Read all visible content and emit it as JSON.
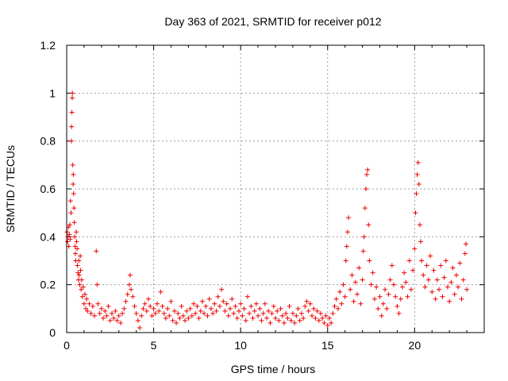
{
  "chart_data": {
    "type": "scatter",
    "title": "Day 363 of 2021, SRMTID for receiver p012",
    "xlabel": "GPS time / hours",
    "ylabel": "SRMTID / TECUs",
    "xlim": [
      0,
      24
    ],
    "ylim": [
      0,
      1.2
    ],
    "grid": true,
    "xticks": [
      0,
      5,
      10,
      15,
      20
    ],
    "xtick_labels": [
      "0",
      "5",
      "10",
      "15",
      "20"
    ],
    "yticks": [
      0,
      0.2,
      0.4,
      0.6,
      0.8,
      1,
      1.2
    ],
    "ytick_labels": [
      "0",
      "0.2",
      "0.4",
      "0.6",
      "0.8",
      "1",
      "1.2"
    ],
    "marker": "+",
    "color": "#ee0000",
    "series": [
      {
        "name": "SRMTID",
        "points": [
          [
            0.02,
            0.42
          ],
          [
            0.05,
            0.38
          ],
          [
            0.08,
            0.4
          ],
          [
            0.1,
            0.44
          ],
          [
            0.12,
            0.36
          ],
          [
            0.15,
            0.41
          ],
          [
            0.18,
            0.45
          ],
          [
            0.2,
            0.39
          ],
          [
            0.22,
            0.55
          ],
          [
            0.25,
            0.5
          ],
          [
            0.27,
            0.8
          ],
          [
            0.28,
            0.86
          ],
          [
            0.3,
            0.92
          ],
          [
            0.32,
            0.98
          ],
          [
            0.33,
            1.0
          ],
          [
            0.35,
            0.7
          ],
          [
            0.37,
            0.62
          ],
          [
            0.38,
            0.66
          ],
          [
            0.4,
            0.58
          ],
          [
            0.42,
            0.52
          ],
          [
            0.44,
            0.46
          ],
          [
            0.46,
            0.4
          ],
          [
            0.48,
            0.36
          ],
          [
            0.5,
            0.33
          ],
          [
            0.52,
            0.3
          ],
          [
            0.55,
            0.42
          ],
          [
            0.57,
            0.38
          ],
          [
            0.6,
            0.35
          ],
          [
            0.62,
            0.28
          ],
          [
            0.65,
            0.25
          ],
          [
            0.68,
            0.22
          ],
          [
            0.7,
            0.3
          ],
          [
            0.72,
            0.24
          ],
          [
            0.75,
            0.2
          ],
          [
            0.78,
            0.32
          ],
          [
            0.8,
            0.26
          ],
          [
            0.83,
            0.18
          ],
          [
            0.86,
            0.22
          ],
          [
            0.9,
            0.15
          ],
          [
            0.95,
            0.19
          ],
          [
            1.0,
            0.12
          ],
          [
            1.05,
            0.16
          ],
          [
            1.1,
            0.1
          ],
          [
            1.15,
            0.14
          ],
          [
            1.2,
            0.09
          ],
          [
            1.3,
            0.12
          ],
          [
            1.4,
            0.08
          ],
          [
            1.5,
            0.11
          ],
          [
            1.6,
            0.07
          ],
          [
            1.7,
            0.34
          ],
          [
            1.75,
            0.2
          ],
          [
            1.8,
            0.12
          ],
          [
            1.9,
            0.08
          ],
          [
            2.0,
            0.1
          ],
          [
            2.1,
            0.06
          ],
          [
            2.2,
            0.09
          ],
          [
            2.3,
            0.07
          ],
          [
            2.4,
            0.11
          ],
          [
            2.5,
            0.05
          ],
          [
            2.6,
            0.08
          ],
          [
            2.7,
            0.06
          ],
          [
            2.8,
            0.09
          ],
          [
            2.9,
            0.05
          ],
          [
            3.0,
            0.07
          ],
          [
            3.1,
            0.04
          ],
          [
            3.2,
            0.08
          ],
          [
            3.3,
            0.1
          ],
          [
            3.4,
            0.13
          ],
          [
            3.5,
            0.16
          ],
          [
            3.6,
            0.2
          ],
          [
            3.65,
            0.24
          ],
          [
            3.7,
            0.18
          ],
          [
            3.8,
            0.15
          ],
          [
            3.9,
            0.11
          ],
          [
            4.0,
            0.08
          ],
          [
            4.1,
            0.05
          ],
          [
            4.2,
            0.02
          ],
          [
            4.3,
            0.07
          ],
          [
            4.4,
            0.1
          ],
          [
            4.5,
            0.12
          ],
          [
            4.6,
            0.09
          ],
          [
            4.7,
            0.14
          ],
          [
            4.8,
            0.11
          ],
          [
            4.9,
            0.07
          ],
          [
            5.0,
            0.1
          ],
          [
            5.1,
            0.08
          ],
          [
            5.2,
            0.12
          ],
          [
            5.3,
            0.09
          ],
          [
            5.4,
            0.17
          ],
          [
            5.5,
            0.11
          ],
          [
            5.6,
            0.08
          ],
          [
            5.7,
            0.06
          ],
          [
            5.8,
            0.1
          ],
          [
            5.9,
            0.07
          ],
          [
            6.0,
            0.13
          ],
          [
            6.1,
            0.05
          ],
          [
            6.2,
            0.09
          ],
          [
            6.3,
            0.04
          ],
          [
            6.4,
            0.08
          ],
          [
            6.5,
            0.06
          ],
          [
            6.6,
            0.11
          ],
          [
            6.7,
            0.07
          ],
          [
            6.8,
            0.05
          ],
          [
            6.9,
            0.09
          ],
          [
            7.0,
            0.06
          ],
          [
            7.1,
            0.1
          ],
          [
            7.2,
            0.07
          ],
          [
            7.3,
            0.12
          ],
          [
            7.4,
            0.08
          ],
          [
            7.5,
            0.11
          ],
          [
            7.6,
            0.06
          ],
          [
            7.7,
            0.09
          ],
          [
            7.8,
            0.13
          ],
          [
            7.9,
            0.08
          ],
          [
            8.0,
            0.11
          ],
          [
            8.1,
            0.07
          ],
          [
            8.2,
            0.14
          ],
          [
            8.3,
            0.1
          ],
          [
            8.4,
            0.08
          ],
          [
            8.5,
            0.12
          ],
          [
            8.6,
            0.09
          ],
          [
            8.7,
            0.15
          ],
          [
            8.8,
            0.11
          ],
          [
            8.9,
            0.18
          ],
          [
            9.0,
            0.13
          ],
          [
            9.1,
            0.09
          ],
          [
            9.2,
            0.12
          ],
          [
            9.3,
            0.07
          ],
          [
            9.4,
            0.1
          ],
          [
            9.5,
            0.14
          ],
          [
            9.6,
            0.08
          ],
          [
            9.7,
            0.11
          ],
          [
            9.8,
            0.06
          ],
          [
            9.9,
            0.09
          ],
          [
            10.0,
            0.12
          ],
          [
            10.1,
            0.07
          ],
          [
            10.2,
            0.1
          ],
          [
            10.3,
            0.05
          ],
          [
            10.4,
            0.15
          ],
          [
            10.5,
            0.08
          ],
          [
            10.6,
            0.11
          ],
          [
            10.7,
            0.06
          ],
          [
            10.8,
            0.09
          ],
          [
            10.9,
            0.12
          ],
          [
            11.0,
            0.07
          ],
          [
            11.1,
            0.1
          ],
          [
            11.2,
            0.05
          ],
          [
            11.3,
            0.08
          ],
          [
            11.4,
            0.12
          ],
          [
            11.5,
            0.06
          ],
          [
            11.6,
            0.09
          ],
          [
            11.7,
            0.04
          ],
          [
            11.8,
            0.08
          ],
          [
            11.9,
            0.11
          ],
          [
            12.0,
            0.06
          ],
          [
            12.1,
            0.09
          ],
          [
            12.2,
            0.05
          ],
          [
            12.3,
            0.1
          ],
          [
            12.4,
            0.07
          ],
          [
            12.5,
            0.04
          ],
          [
            12.6,
            0.08
          ],
          [
            12.7,
            0.06
          ],
          [
            12.8,
            0.11
          ],
          [
            12.9,
            0.05
          ],
          [
            13.0,
            0.08
          ],
          [
            13.1,
            0.04
          ],
          [
            13.2,
            0.07
          ],
          [
            13.3,
            0.1
          ],
          [
            13.4,
            0.05
          ],
          [
            13.5,
            0.08
          ],
          [
            13.6,
            0.06
          ],
          [
            13.7,
            0.11
          ],
          [
            13.8,
            0.13
          ],
          [
            13.9,
            0.09
          ],
          [
            14.0,
            0.12
          ],
          [
            14.1,
            0.07
          ],
          [
            14.2,
            0.1
          ],
          [
            14.3,
            0.06
          ],
          [
            14.4,
            0.09
          ],
          [
            14.5,
            0.05
          ],
          [
            14.6,
            0.08
          ],
          [
            14.7,
            0.06
          ],
          [
            14.8,
            0.04
          ],
          [
            14.9,
            0.07
          ],
          [
            15.0,
            0.03
          ],
          [
            15.1,
            0.06
          ],
          [
            15.2,
            0.04
          ],
          [
            15.3,
            0.08
          ],
          [
            15.4,
            0.11
          ],
          [
            15.5,
            0.14
          ],
          [
            15.6,
            0.1
          ],
          [
            15.7,
            0.17
          ],
          [
            15.8,
            0.12
          ],
          [
            15.9,
            0.2
          ],
          [
            16.0,
            0.15
          ],
          [
            16.05,
            0.3
          ],
          [
            16.1,
            0.36
          ],
          [
            16.15,
            0.42
          ],
          [
            16.2,
            0.48
          ],
          [
            16.3,
            0.18
          ],
          [
            16.4,
            0.24
          ],
          [
            16.5,
            0.13
          ],
          [
            16.6,
            0.21
          ],
          [
            16.7,
            0.16
          ],
          [
            16.8,
            0.27
          ],
          [
            16.9,
            0.12
          ],
          [
            17.0,
            0.22
          ],
          [
            17.05,
            0.34
          ],
          [
            17.1,
            0.4
          ],
          [
            17.15,
            0.52
          ],
          [
            17.2,
            0.6
          ],
          [
            17.25,
            0.66
          ],
          [
            17.3,
            0.68
          ],
          [
            17.35,
            0.45
          ],
          [
            17.4,
            0.3
          ],
          [
            17.5,
            0.2
          ],
          [
            17.6,
            0.25
          ],
          [
            17.7,
            0.14
          ],
          [
            17.8,
            0.19
          ],
          [
            17.9,
            0.1
          ],
          [
            18.0,
            0.15
          ],
          [
            18.1,
            0.07
          ],
          [
            18.2,
            0.12
          ],
          [
            18.3,
            0.18
          ],
          [
            18.4,
            0.1
          ],
          [
            18.5,
            0.16
          ],
          [
            18.6,
            0.22
          ],
          [
            18.7,
            0.28
          ],
          [
            18.8,
            0.2
          ],
          [
            18.9,
            0.15
          ],
          [
            19.0,
            0.11
          ],
          [
            19.1,
            0.08
          ],
          [
            19.2,
            0.14
          ],
          [
            19.3,
            0.19
          ],
          [
            19.4,
            0.25
          ],
          [
            19.5,
            0.21
          ],
          [
            19.6,
            0.15
          ],
          [
            19.7,
            0.3
          ],
          [
            19.8,
            0.18
          ],
          [
            19.9,
            0.26
          ],
          [
            20.0,
            0.35
          ],
          [
            20.05,
            0.5
          ],
          [
            20.1,
            0.58
          ],
          [
            20.15,
            0.66
          ],
          [
            20.2,
            0.71
          ],
          [
            20.25,
            0.62
          ],
          [
            20.3,
            0.45
          ],
          [
            20.35,
            0.38
          ],
          [
            20.4,
            0.3
          ],
          [
            20.5,
            0.24
          ],
          [
            20.6,
            0.19
          ],
          [
            20.7,
            0.28
          ],
          [
            20.8,
            0.22
          ],
          [
            20.9,
            0.32
          ],
          [
            21.0,
            0.17
          ],
          [
            21.1,
            0.26
          ],
          [
            21.2,
            0.14
          ],
          [
            21.3,
            0.22
          ],
          [
            21.4,
            0.18
          ],
          [
            21.5,
            0.28
          ],
          [
            21.6,
            0.15
          ],
          [
            21.7,
            0.23
          ],
          [
            21.8,
            0.3
          ],
          [
            21.9,
            0.19
          ],
          [
            22.0,
            0.13
          ],
          [
            22.1,
            0.21
          ],
          [
            22.2,
            0.27
          ],
          [
            22.3,
            0.16
          ],
          [
            22.4,
            0.24
          ],
          [
            22.5,
            0.19
          ],
          [
            22.6,
            0.29
          ],
          [
            22.7,
            0.14
          ],
          [
            22.8,
            0.22
          ],
          [
            22.9,
            0.33
          ],
          [
            22.95,
            0.37
          ],
          [
            23.0,
            0.18
          ]
        ]
      }
    ]
  }
}
